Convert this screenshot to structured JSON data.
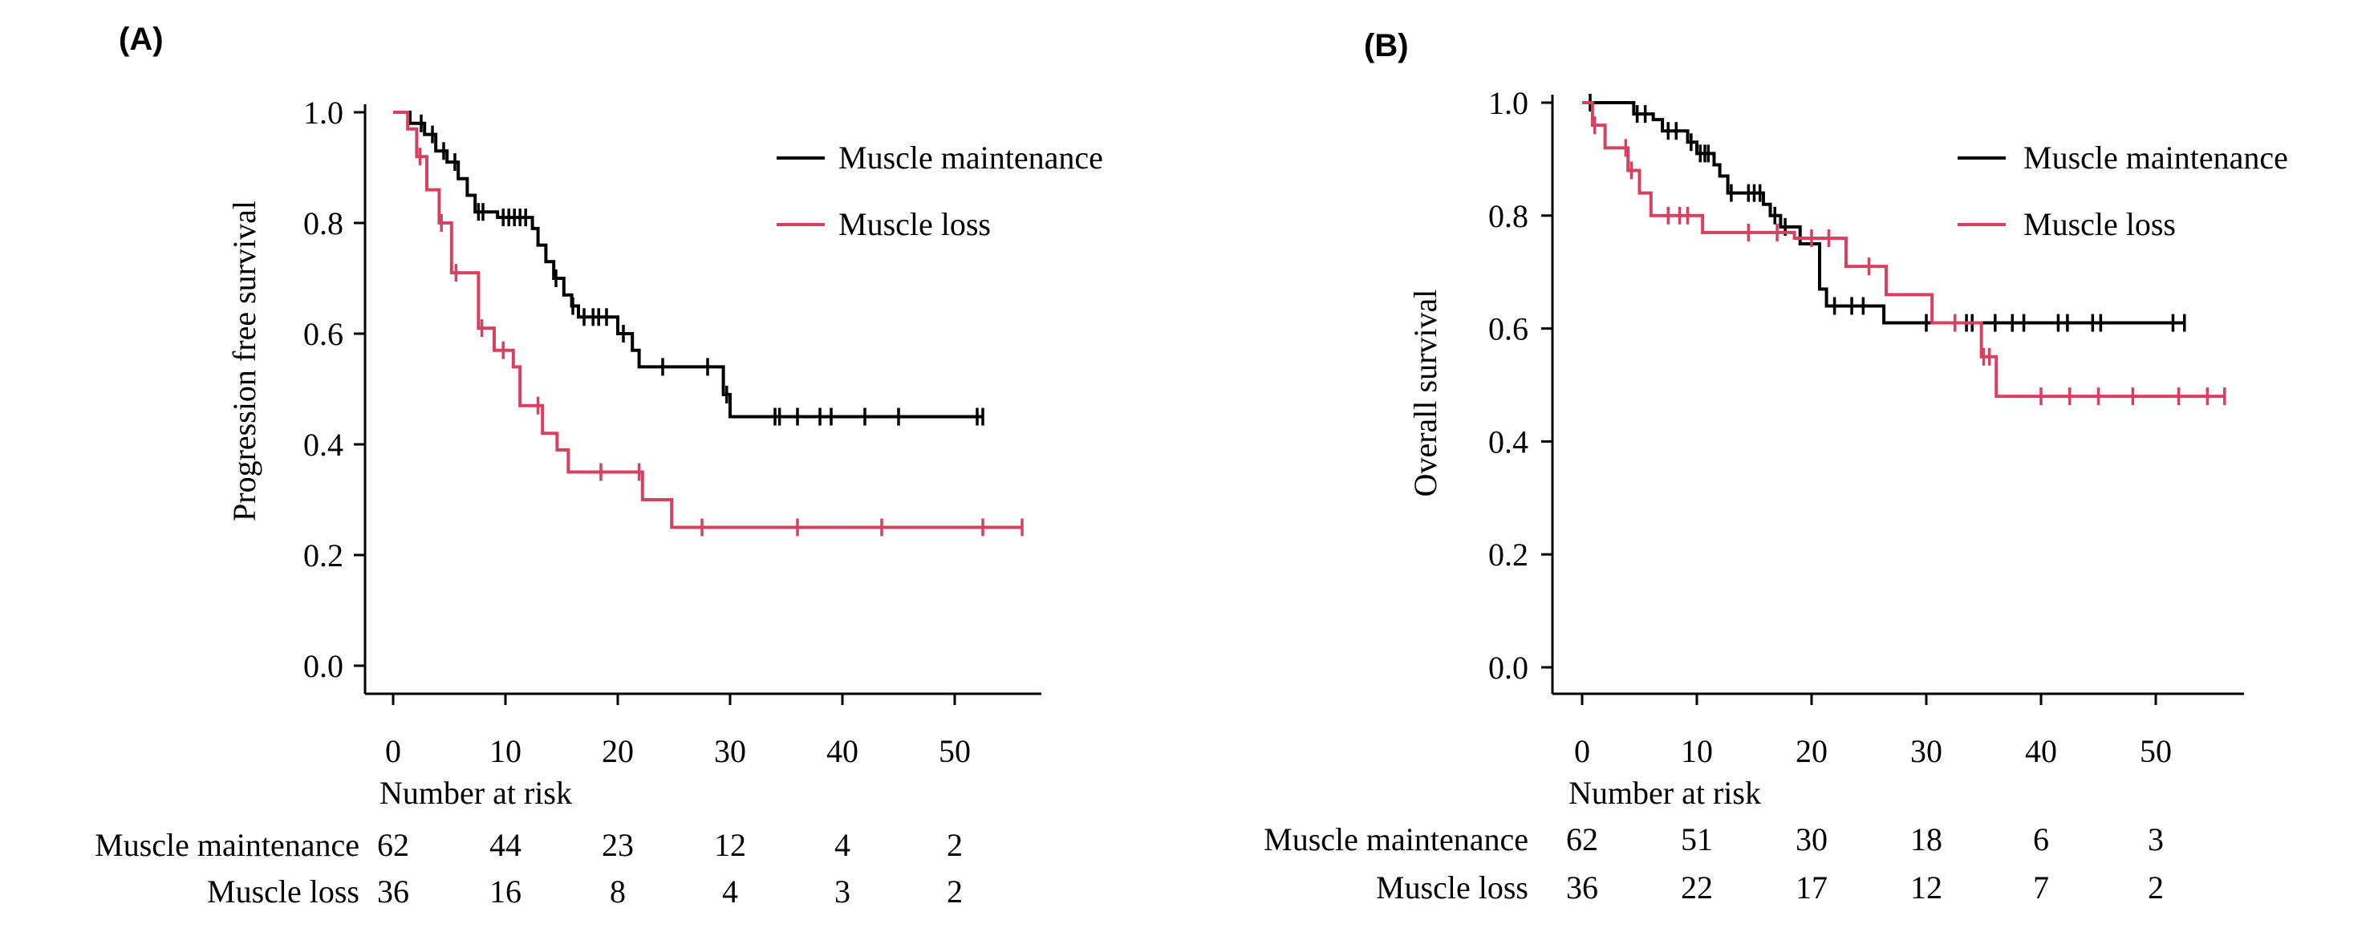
{
  "colors": {
    "maintenance": "#000000",
    "loss": "#d6415f",
    "axis": "#000000"
  },
  "chart_data": [
    {
      "type": "line",
      "panel_label": "(A)",
      "ylabel": "Progression free survival",
      "xlim": [
        0,
        57
      ],
      "ylim": [
        0,
        1
      ],
      "x_ticks": [
        "0",
        "10",
        "20",
        "30",
        "40",
        "50"
      ],
      "y_ticks": [
        "0.0",
        "0.2",
        "0.4",
        "0.6",
        "0.8",
        "1.0"
      ],
      "legend": [
        "Muscle maintenance",
        "Muscle loss"
      ],
      "series": [
        {
          "name": "Muscle maintenance",
          "steps": [
            [
              0,
              1.0
            ],
            [
              1.5,
              0.98
            ],
            [
              2.8,
              0.96
            ],
            [
              3.8,
              0.93
            ],
            [
              4.8,
              0.91
            ],
            [
              5.8,
              0.88
            ],
            [
              6.6,
              0.85
            ],
            [
              7.3,
              0.82
            ],
            [
              9.3,
              0.81
            ],
            [
              12.4,
              0.79
            ],
            [
              12.9,
              0.76
            ],
            [
              13.6,
              0.73
            ],
            [
              14.3,
              0.7
            ],
            [
              15.2,
              0.67
            ],
            [
              15.9,
              0.65
            ],
            [
              16.5,
              0.63
            ],
            [
              20.0,
              0.6
            ],
            [
              21.3,
              0.57
            ],
            [
              21.9,
              0.54
            ],
            [
              29.4,
              0.49
            ],
            [
              30.0,
              0.45
            ]
          ],
          "censor_x": [
            2.5,
            3.5,
            4.5,
            5.5,
            7.6,
            8.0,
            9.8,
            10.3,
            10.8,
            11.3,
            11.8,
            14.5,
            16.0,
            17.0,
            17.8,
            18.3,
            19.0,
            20.5,
            24.0,
            28.0,
            29.7,
            34.0,
            34.4,
            36.0,
            38.0,
            39.0,
            42.0,
            45.0,
            52.0,
            52.5
          ]
        },
        {
          "name": "Muscle loss",
          "steps": [
            [
              0,
              1.0
            ],
            [
              1.3,
              0.97
            ],
            [
              2.1,
              0.92
            ],
            [
              3.0,
              0.86
            ],
            [
              4.1,
              0.8
            ],
            [
              5.2,
              0.71
            ],
            [
              7.6,
              0.61
            ],
            [
              9.0,
              0.57
            ],
            [
              10.7,
              0.54
            ],
            [
              11.3,
              0.47
            ],
            [
              13.3,
              0.42
            ],
            [
              14.6,
              0.39
            ],
            [
              15.6,
              0.35
            ],
            [
              22.2,
              0.3
            ],
            [
              24.8,
              0.25
            ]
          ],
          "censor_x": [
            2.4,
            4.3,
            5.6,
            7.9,
            9.8,
            12.9,
            18.5,
            21.9,
            27.5,
            36.0,
            43.5,
            52.5,
            56.0
          ]
        }
      ],
      "risk_table": {
        "title": "Number at risk",
        "rows": [
          {
            "label": "Muscle maintenance",
            "values": [
              "62",
              "44",
              "23",
              "12",
              "4",
              "2"
            ]
          },
          {
            "label": "Muscle loss",
            "values": [
              "36",
              "16",
              "8",
              "4",
              "3",
              "2"
            ]
          }
        ]
      }
    },
    {
      "type": "line",
      "panel_label": "(B)",
      "ylabel": "Overall survival",
      "xlim": [
        0,
        57
      ],
      "ylim": [
        0,
        1
      ],
      "x_ticks": [
        "0",
        "10",
        "20",
        "30",
        "40",
        "50"
      ],
      "y_ticks": [
        "0.0",
        "0.2",
        "0.4",
        "0.6",
        "0.8",
        "1.0"
      ],
      "legend": [
        "Muscle maintenance",
        "Muscle loss"
      ],
      "series": [
        {
          "name": "Muscle maintenance",
          "steps": [
            [
              0,
              1.0
            ],
            [
              4.5,
              0.98
            ],
            [
              6.2,
              0.97
            ],
            [
              7.0,
              0.95
            ],
            [
              9.2,
              0.93
            ],
            [
              10.0,
              0.91
            ],
            [
              11.5,
              0.89
            ],
            [
              12.0,
              0.87
            ],
            [
              12.7,
              0.84
            ],
            [
              15.8,
              0.82
            ],
            [
              16.4,
              0.8
            ],
            [
              17.3,
              0.78
            ],
            [
              19.0,
              0.75
            ],
            [
              20.7,
              0.67
            ],
            [
              21.3,
              0.64
            ],
            [
              26.3,
              0.61
            ]
          ],
          "censor_x": [
            0.7,
            4.8,
            5.5,
            7.5,
            8.2,
            9.5,
            10.3,
            10.7,
            11.0,
            13.0,
            14.5,
            15.0,
            15.5,
            16.8,
            17.7,
            22.0,
            23.5,
            24.5,
            30.0,
            33.5,
            34.0,
            36.0,
            37.5,
            38.5,
            41.5,
            42.3,
            44.5,
            45.2,
            51.5,
            52.5
          ]
        },
        {
          "name": "Muscle loss",
          "steps": [
            [
              0,
              1.0
            ],
            [
              0.9,
              0.96
            ],
            [
              2.0,
              0.92
            ],
            [
              4.0,
              0.88
            ],
            [
              5.0,
              0.84
            ],
            [
              6.0,
              0.8
            ],
            [
              10.5,
              0.77
            ],
            [
              18.5,
              0.76
            ],
            [
              23.0,
              0.71
            ],
            [
              26.5,
              0.66
            ],
            [
              30.5,
              0.61
            ],
            [
              34.8,
              0.55
            ],
            [
              36.1,
              0.48
            ]
          ],
          "censor_x": [
            1.1,
            3.8,
            4.3,
            7.5,
            8.5,
            9.2,
            14.5,
            17.0,
            20.0,
            21.5,
            25.0,
            32.5,
            35.0,
            35.5,
            40.0,
            42.5,
            45.0,
            48.0,
            52.0,
            54.5,
            56.0
          ]
        }
      ],
      "risk_table": {
        "title": "Number at risk",
        "rows": [
          {
            "label": "Muscle maintenance",
            "values": [
              "62",
              "51",
              "30",
              "18",
              "6",
              "3"
            ]
          },
          {
            "label": "Muscle loss",
            "values": [
              "36",
              "22",
              "17",
              "12",
              "7",
              "2"
            ]
          }
        ]
      }
    }
  ]
}
